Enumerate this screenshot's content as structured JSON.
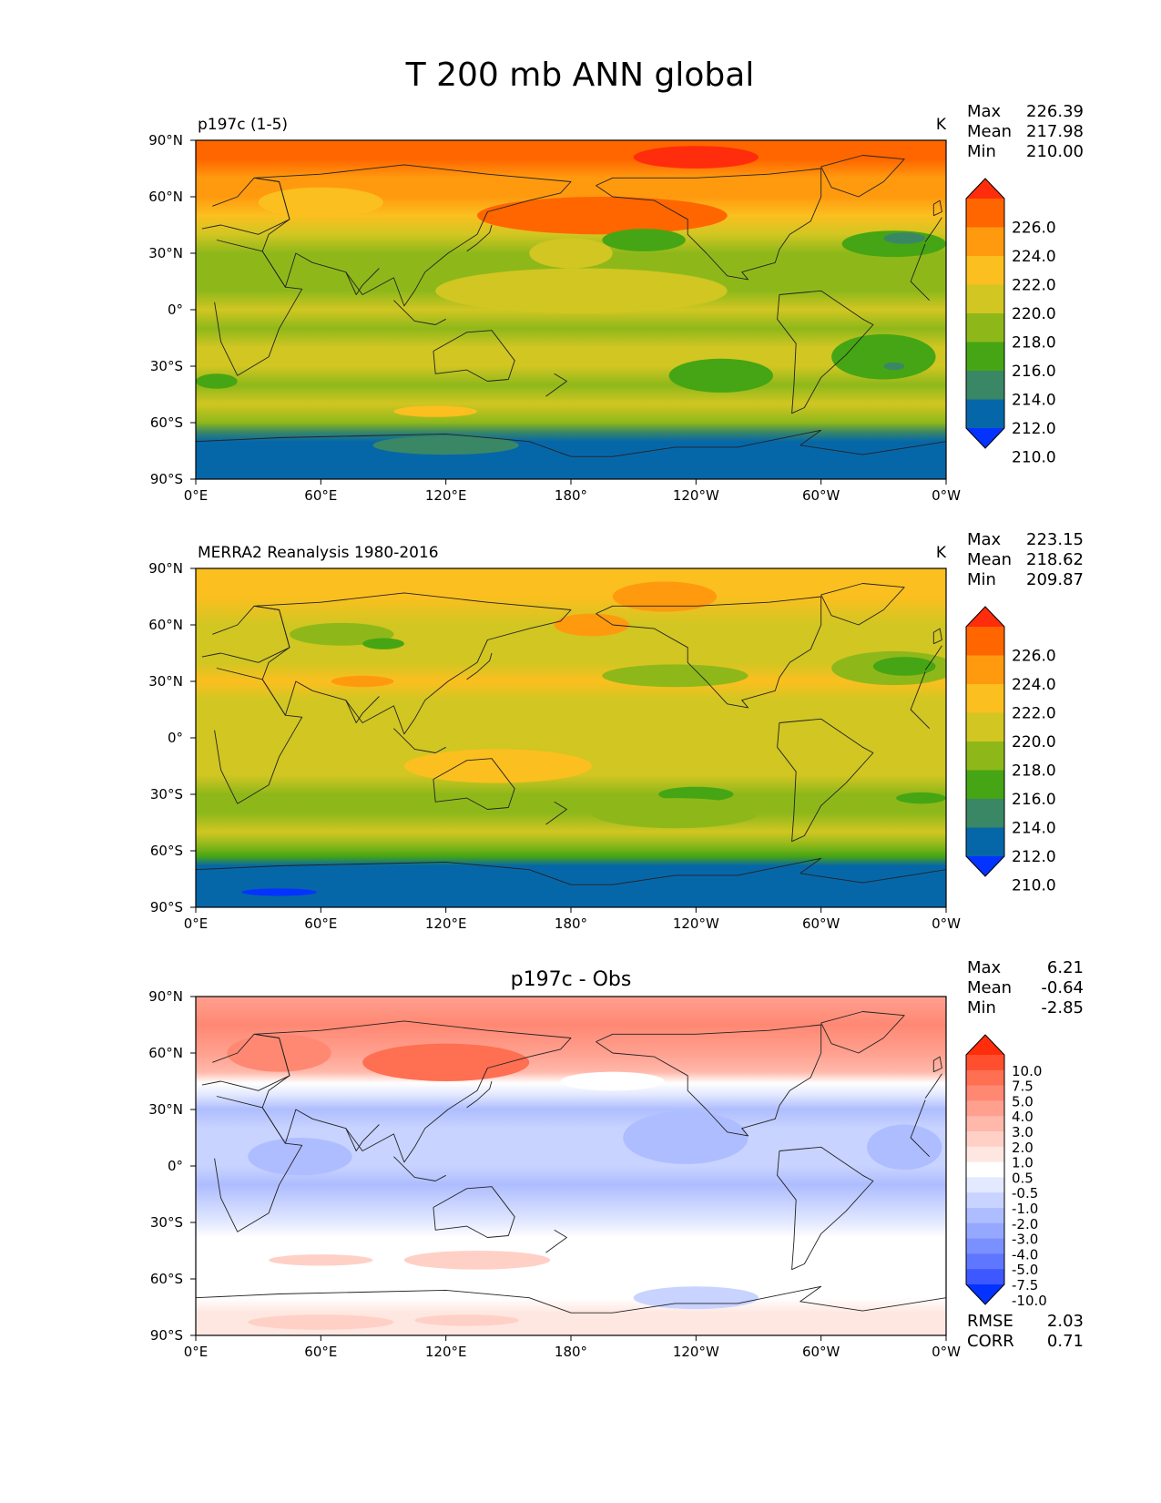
{
  "figure_title": "T 200 mb ANN global",
  "chart_data": [
    {
      "type": "heatmap",
      "title": "p197c (1-5)",
      "units": "K",
      "stats": [
        {
          "label": "Max",
          "value": "226.39"
        },
        {
          "label": "Mean",
          "value": "217.98"
        },
        {
          "label": "Min",
          "value": "210.00"
        }
      ],
      "xticks": [
        "0°E",
        "60°E",
        "120°E",
        "180°",
        "120°W",
        "60°W",
        "0°W"
      ],
      "yticks": [
        "90°N",
        "60°N",
        "30°N",
        "0°",
        "30°S",
        "60°S",
        "90°S"
      ],
      "colorbar": {
        "levels": [
          "226.0",
          "224.0",
          "222.0",
          "220.0",
          "218.0",
          "216.0",
          "214.0",
          "212.0",
          "210.0"
        ],
        "colors": [
          "#ff2d0b",
          "#ff6600",
          "#ff9a0f",
          "#fbbf1f",
          "#d1c622",
          "#8eb81a",
          "#46a514",
          "#3a8766",
          "#0667a8",
          "#0433ff"
        ]
      },
      "bands": [
        {
          "lat": 90,
          "color": "#ff6600"
        },
        {
          "lat": 80,
          "color": "#ff6600"
        },
        {
          "lat": 70,
          "color": "#ff9a0f"
        },
        {
          "lat": 60,
          "color": "#ff9a0f"
        },
        {
          "lat": 50,
          "color": "#fbbf1f"
        },
        {
          "lat": 40,
          "color": "#d1c622"
        },
        {
          "lat": 30,
          "color": "#8eb81a"
        },
        {
          "lat": 20,
          "color": "#8eb81a"
        },
        {
          "lat": 10,
          "color": "#8eb81a"
        },
        {
          "lat": 0,
          "color": "#d1c622"
        },
        {
          "lat": -10,
          "color": "#8eb81a"
        },
        {
          "lat": -20,
          "color": "#d1c622"
        },
        {
          "lat": -30,
          "color": "#d1c622"
        },
        {
          "lat": -40,
          "color": "#8eb81a"
        },
        {
          "lat": -50,
          "color": "#d1c622"
        },
        {
          "lat": -60,
          "color": "#8eb81a"
        },
        {
          "lat": -65,
          "color": "#3a8766"
        },
        {
          "lat": -70,
          "color": "#0667a8"
        },
        {
          "lat": -90,
          "color": "#0667a8"
        }
      ],
      "features": [
        {
          "lon": 195,
          "lat": 50,
          "rlon": 60,
          "rlat": 10,
          "color": "#ff6600"
        },
        {
          "lon": 240,
          "lat": 81,
          "rlon": 30,
          "rlat": 6,
          "color": "#ff2d0b"
        },
        {
          "lon": 60,
          "lat": 57,
          "rlon": 30,
          "rlat": 8,
          "color": "#fbbf1f"
        },
        {
          "lon": 185,
          "lat": 10,
          "rlon": 70,
          "rlat": 12,
          "color": "#d1c622"
        },
        {
          "lon": 180,
          "lat": 30,
          "rlon": 20,
          "rlat": 8,
          "color": "#d1c622"
        },
        {
          "lon": 215,
          "lat": 37,
          "rlon": 20,
          "rlat": 6,
          "color": "#46a514"
        },
        {
          "lon": 335,
          "lat": 35,
          "rlon": 25,
          "rlat": 7,
          "color": "#46a514"
        },
        {
          "lon": 340,
          "lat": 38,
          "rlon": 10,
          "rlat": 3,
          "color": "#3a8766"
        },
        {
          "lon": 252,
          "lat": -35,
          "rlon": 25,
          "rlat": 9,
          "color": "#46a514"
        },
        {
          "lon": 330,
          "lat": -25,
          "rlon": 25,
          "rlat": 12,
          "color": "#46a514"
        },
        {
          "lon": 335,
          "lat": -30,
          "rlon": 5,
          "rlat": 2,
          "color": "#3a8766"
        },
        {
          "lon": 115,
          "lat": -54,
          "rlon": 20,
          "rlat": 3,
          "color": "#fbbf1f"
        },
        {
          "lon": 120,
          "lat": -72,
          "rlon": 35,
          "rlat": 5,
          "color": "#3a8766"
        },
        {
          "lon": 10,
          "lat": -38,
          "rlon": 10,
          "rlat": 4,
          "color": "#46a514"
        }
      ]
    },
    {
      "type": "heatmap",
      "title": "MERRA2 Reanalysis 1980-2016",
      "units": "K",
      "stats": [
        {
          "label": "Max",
          "value": "223.15"
        },
        {
          "label": "Mean",
          "value": "218.62"
        },
        {
          "label": "Min",
          "value": "209.87"
        }
      ],
      "xticks": [
        "0°E",
        "60°E",
        "120°E",
        "180°",
        "120°W",
        "60°W",
        "0°W"
      ],
      "yticks": [
        "90°N",
        "60°N",
        "30°N",
        "0°",
        "30°S",
        "60°S",
        "90°S"
      ],
      "colorbar": {
        "levels": [
          "226.0",
          "224.0",
          "222.0",
          "220.0",
          "218.0",
          "216.0",
          "214.0",
          "212.0",
          "210.0"
        ],
        "colors": [
          "#ff2d0b",
          "#ff6600",
          "#ff9a0f",
          "#fbbf1f",
          "#d1c622",
          "#8eb81a",
          "#46a514",
          "#3a8766",
          "#0667a8",
          "#0433ff"
        ]
      },
      "bands": [
        {
          "lat": 90,
          "color": "#fbbf1f"
        },
        {
          "lat": 75,
          "color": "#fbbf1f"
        },
        {
          "lat": 60,
          "color": "#d1c622"
        },
        {
          "lat": 50,
          "color": "#d1c622"
        },
        {
          "lat": 40,
          "color": "#d1c622"
        },
        {
          "lat": 30,
          "color": "#fbbf1f"
        },
        {
          "lat": 20,
          "color": "#d1c622"
        },
        {
          "lat": 10,
          "color": "#d1c622"
        },
        {
          "lat": 0,
          "color": "#d1c622"
        },
        {
          "lat": -10,
          "color": "#d1c622"
        },
        {
          "lat": -20,
          "color": "#d1c622"
        },
        {
          "lat": -30,
          "color": "#8eb81a"
        },
        {
          "lat": -40,
          "color": "#8eb81a"
        },
        {
          "lat": -50,
          "color": "#d1c622"
        },
        {
          "lat": -57,
          "color": "#8eb81a"
        },
        {
          "lat": -63,
          "color": "#46a514"
        },
        {
          "lat": -68,
          "color": "#0667a8"
        },
        {
          "lat": -90,
          "color": "#0667a8"
        }
      ],
      "features": [
        {
          "lon": 225,
          "lat": 75,
          "rlon": 25,
          "rlat": 8,
          "color": "#ff9a0f"
        },
        {
          "lon": 190,
          "lat": 60,
          "rlon": 18,
          "rlat": 6,
          "color": "#ff9a0f"
        },
        {
          "lon": 80,
          "lat": 30,
          "rlon": 15,
          "rlat": 3,
          "color": "#ff9a0f"
        },
        {
          "lon": 70,
          "lat": 55,
          "rlon": 25,
          "rlat": 6,
          "color": "#8eb81a"
        },
        {
          "lon": 90,
          "lat": 50,
          "rlon": 10,
          "rlat": 3,
          "color": "#46a514"
        },
        {
          "lon": 230,
          "lat": 33,
          "rlon": 35,
          "rlat": 6,
          "color": "#8eb81a"
        },
        {
          "lon": 335,
          "lat": 37,
          "rlon": 30,
          "rlat": 9,
          "color": "#8eb81a"
        },
        {
          "lon": 340,
          "lat": 38,
          "rlon": 15,
          "rlat": 5,
          "color": "#46a514"
        },
        {
          "lon": 145,
          "lat": -15,
          "rlon": 45,
          "rlat": 9,
          "color": "#fbbf1f"
        },
        {
          "lon": 240,
          "lat": -30,
          "rlon": 18,
          "rlat": 4,
          "color": "#46a514"
        },
        {
          "lon": 348,
          "lat": -32,
          "rlon": 12,
          "rlat": 3,
          "color": "#46a514"
        },
        {
          "lon": 40,
          "lat": -82,
          "rlon": 18,
          "rlat": 2,
          "color": "#0433ff"
        },
        {
          "lon": 230,
          "lat": -40,
          "rlon": 40,
          "rlat": 8,
          "color": "#8eb81a"
        }
      ]
    },
    {
      "type": "heatmap",
      "title": "p197c - Obs",
      "units": "",
      "stats": [
        {
          "label": "Max",
          "value": "6.21"
        },
        {
          "label": "Mean",
          "value": "-0.64"
        },
        {
          "label": "Min",
          "value": "-2.85"
        }
      ],
      "extra_stats": [
        {
          "label": "RMSE",
          "value": "2.03"
        },
        {
          "label": "CORR",
          "value": "0.71"
        }
      ],
      "xticks": [
        "0°E",
        "60°E",
        "120°E",
        "180°",
        "120°W",
        "60°W",
        "0°W"
      ],
      "yticks": [
        "90°N",
        "60°N",
        "30°N",
        "0°",
        "30°S",
        "60°S",
        "90°S"
      ],
      "colorbar": {
        "levels": [
          "10.0",
          "7.5",
          "5.0",
          "4.0",
          "3.0",
          "2.0",
          "1.0",
          "0.5",
          "-0.5",
          "-1.0",
          "-2.0",
          "-3.0",
          "-4.0",
          "-5.0",
          "-7.5",
          "-10.0"
        ],
        "colors": [
          "#ff2d0b",
          "#ff4f2e",
          "#ff6f52",
          "#ff8873",
          "#ffa08f",
          "#ffb8aa",
          "#ffd0c6",
          "#ffe7e1",
          "#ffffff",
          "#e3e9ff",
          "#c8d3ff",
          "#aebdff",
          "#95a7ff",
          "#7b90ff",
          "#5f77ff",
          "#3d58ff",
          "#0433ff"
        ]
      },
      "bands": [
        {
          "lat": 90,
          "color": "#ffa08f"
        },
        {
          "lat": 75,
          "color": "#ff8873"
        },
        {
          "lat": 60,
          "color": "#ffa08f"
        },
        {
          "lat": 50,
          "color": "#ffb8aa"
        },
        {
          "lat": 44,
          "color": "#ffffff"
        },
        {
          "lat": 38,
          "color": "#e3e9ff"
        },
        {
          "lat": 30,
          "color": "#aebdff"
        },
        {
          "lat": 20,
          "color": "#c8d3ff"
        },
        {
          "lat": 10,
          "color": "#c8d3ff"
        },
        {
          "lat": 0,
          "color": "#c8d3ff"
        },
        {
          "lat": -10,
          "color": "#aebdff"
        },
        {
          "lat": -20,
          "color": "#c8d3ff"
        },
        {
          "lat": -30,
          "color": "#e3e9ff"
        },
        {
          "lat": -38,
          "color": "#ffffff"
        },
        {
          "lat": -50,
          "color": "#ffffff"
        },
        {
          "lat": -60,
          "color": "#ffffff"
        },
        {
          "lat": -70,
          "color": "#ffffff"
        },
        {
          "lat": -78,
          "color": "#ffe7e1"
        },
        {
          "lat": -90,
          "color": "#ffe7e1"
        }
      ],
      "features": [
        {
          "lon": 120,
          "lat": 55,
          "rlon": 40,
          "rlat": 10,
          "color": "#ff6f52"
        },
        {
          "lon": 40,
          "lat": 60,
          "rlon": 25,
          "rlat": 10,
          "color": "#ff8873"
        },
        {
          "lon": 200,
          "lat": 45,
          "rlon": 25,
          "rlat": 5,
          "color": "#ffffff"
        },
        {
          "lon": 235,
          "lat": 15,
          "rlon": 30,
          "rlat": 14,
          "color": "#aebdff"
        },
        {
          "lon": 340,
          "lat": 10,
          "rlon": 18,
          "rlat": 12,
          "color": "#aebdff"
        },
        {
          "lon": 50,
          "lat": 5,
          "rlon": 25,
          "rlat": 10,
          "color": "#aebdff"
        },
        {
          "lon": 135,
          "lat": -50,
          "rlon": 35,
          "rlat": 5,
          "color": "#ffd0c6"
        },
        {
          "lon": 60,
          "lat": -50,
          "rlon": 25,
          "rlat": 3,
          "color": "#ffd0c6"
        },
        {
          "lon": 240,
          "lat": -70,
          "rlon": 30,
          "rlat": 6,
          "color": "#c8d3ff"
        },
        {
          "lon": 60,
          "lat": -83,
          "rlon": 35,
          "rlat": 4,
          "color": "#ffd0c6"
        },
        {
          "lon": 130,
          "lat": -82,
          "rlon": 25,
          "rlat": 3,
          "color": "#ffd0c6"
        }
      ]
    }
  ]
}
